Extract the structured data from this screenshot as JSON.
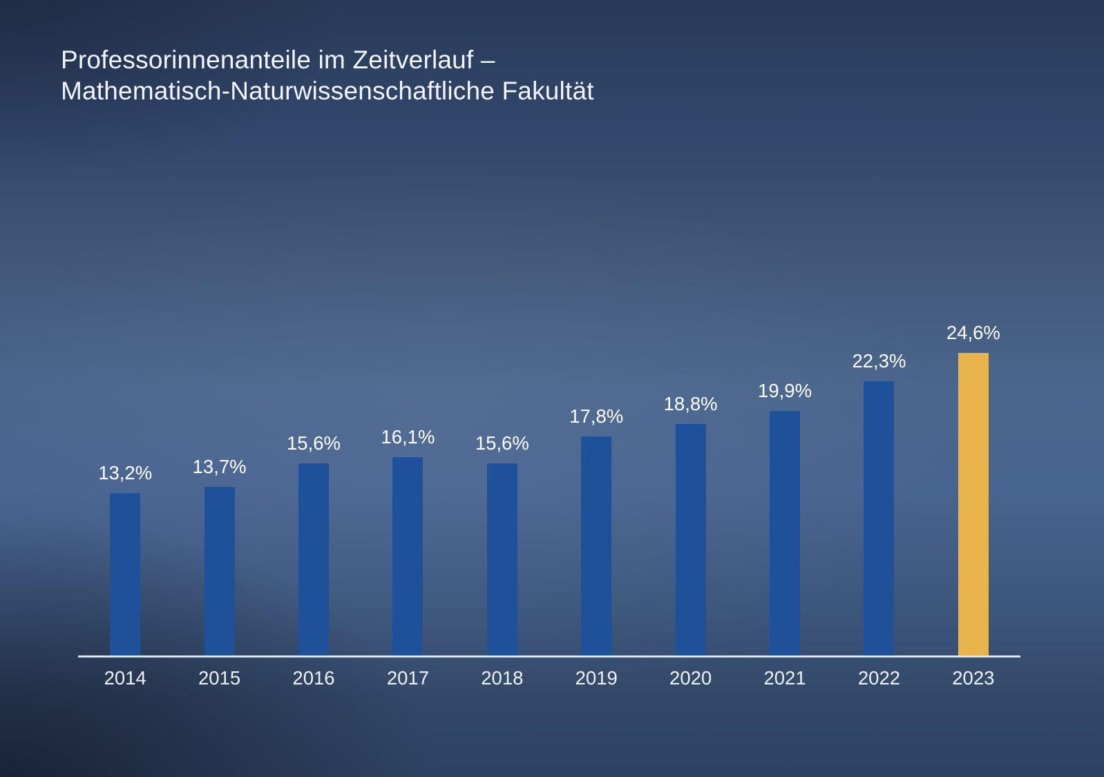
{
  "title": {
    "line1": "Professorinnenanteile im Zeitverlauf –",
    "line2": "Mathematisch-Naturwissenschaftliche Fakultät"
  },
  "chart_data": {
    "type": "bar",
    "title": "Professorinnenanteile im Zeitverlauf – Mathematisch-Naturwissenschaftliche Fakultät",
    "categories": [
      "2014",
      "2015",
      "2016",
      "2017",
      "2018",
      "2019",
      "2020",
      "2021",
      "2022",
      "2023"
    ],
    "values": [
      13.2,
      13.7,
      15.6,
      16.1,
      15.6,
      17.8,
      18.8,
      19.9,
      22.3,
      24.6
    ],
    "value_labels": [
      "13,2%",
      "13,7%",
      "15,6%",
      "16,1%",
      "15,6%",
      "17,8%",
      "18,8%",
      "19,9%",
      "22,3%",
      "24,6%"
    ],
    "unit": "%",
    "xlabel": "",
    "ylabel": "",
    "ylim": [
      0,
      26.5
    ],
    "grid": false,
    "legend": null,
    "highlight_index": 9,
    "colors": {
      "bar": "#1f519b",
      "highlight_bar": "#e9b44c",
      "value_label": "#ffffff",
      "tick_label": "#eef2f8",
      "axis_line": "#e2e6ed",
      "title": "#f1f4f9"
    }
  }
}
